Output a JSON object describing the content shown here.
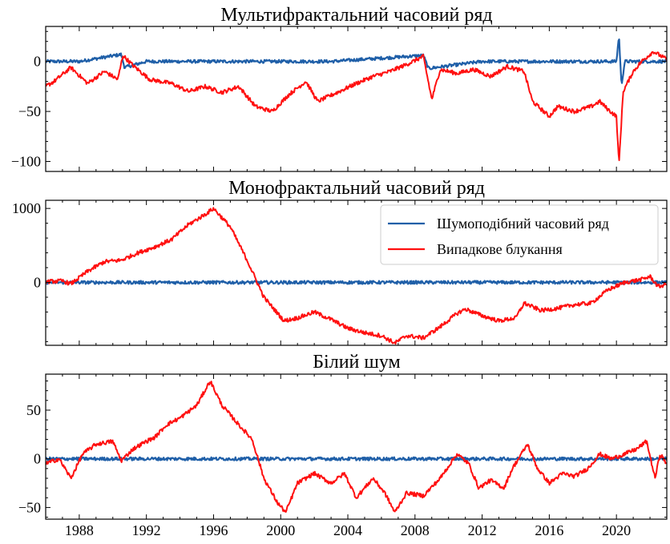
{
  "chart_data": [
    {
      "type": "line",
      "title": "Мультифрактальний часовий ряд",
      "xlabel": "",
      "ylabel": "",
      "xlim": [
        1986.0,
        2023.0
      ],
      "ylim": [
        -110,
        35
      ],
      "yticks": [
        0,
        -50,
        -100
      ],
      "ytick_labels": [
        "0",
        "−50",
        "−100"
      ],
      "x_tick_labels_shown": false,
      "grid": false,
      "series": [
        {
          "color": "#1f5fa8",
          "points": [
            [
              1986.0,
              0
            ],
            [
              1988,
              0
            ],
            [
              1990.5,
              7
            ],
            [
              1990.7,
              -6
            ],
            [
              1992,
              0
            ],
            [
              1996,
              0
            ],
            [
              1999,
              0
            ],
            [
              2003,
              0
            ],
            [
              2008.5,
              6
            ],
            [
              2008.8,
              -7
            ],
            [
              2012,
              0
            ],
            [
              2016,
              0
            ],
            [
              2020.0,
              0
            ],
            [
              2020.15,
              26
            ],
            [
              2020.3,
              -24
            ],
            [
              2020.5,
              0
            ],
            [
              2023.0,
              0
            ]
          ]
        },
        {
          "color": "#ff1010",
          "points": [
            [
              1986.0,
              -25
            ],
            [
              1986.5,
              -20
            ],
            [
              1987.5,
              -6
            ],
            [
              1988.5,
              -22
            ],
            [
              1989.5,
              -10
            ],
            [
              1990.3,
              -18
            ],
            [
              1990.6,
              6
            ],
            [
              1991.2,
              -4
            ],
            [
              1992.2,
              -18
            ],
            [
              1993.5,
              -22
            ],
            [
              1994.5,
              -30
            ],
            [
              1995.5,
              -25
            ],
            [
              1996.5,
              -31
            ],
            [
              1997.5,
              -25
            ],
            [
              1998.5,
              -45
            ],
            [
              1999.5,
              -50
            ],
            [
              2000.5,
              -33
            ],
            [
              2001.5,
              -20
            ],
            [
              2002.2,
              -40
            ],
            [
              2003.5,
              -30
            ],
            [
              2004.5,
              -22
            ],
            [
              2005.5,
              -15
            ],
            [
              2006.5,
              -10
            ],
            [
              2007.5,
              -3
            ],
            [
              2008.5,
              5
            ],
            [
              2009.0,
              -38
            ],
            [
              2009.5,
              -8
            ],
            [
              2010.5,
              -12
            ],
            [
              2011.5,
              -8
            ],
            [
              2012.5,
              -15
            ],
            [
              2013.5,
              -5
            ],
            [
              2014.5,
              -10
            ],
            [
              2015.0,
              -40
            ],
            [
              2016.0,
              -55
            ],
            [
              2016.5,
              -45
            ],
            [
              2017.5,
              -50
            ],
            [
              2018.5,
              -45
            ],
            [
              2019.0,
              -40
            ],
            [
              2019.5,
              -48
            ],
            [
              2020.0,
              -55
            ],
            [
              2020.15,
              -103
            ],
            [
              2020.4,
              -30
            ],
            [
              2021.0,
              -10
            ],
            [
              2021.5,
              0
            ],
            [
              2022.2,
              10
            ],
            [
              2023.0,
              2
            ]
          ]
        }
      ]
    },
    {
      "type": "line",
      "title": "Монофрактальний часовий ряд",
      "xlabel": "",
      "ylabel": "",
      "xlim": [
        1986.0,
        2023.0
      ],
      "ylim": [
        -850,
        1110
      ],
      "yticks": [
        1000,
        0
      ],
      "ytick_labels": [
        "1000",
        "0"
      ],
      "x_tick_labels_shown": false,
      "grid": false,
      "legend": {
        "location": "upper right",
        "entries": [
          "Шумоподібний часовий ряд",
          "Випадкове блукання"
        ]
      },
      "series": [
        {
          "name": "Шумоподібний часовий ряд",
          "color": "#1f5fa8",
          "points": [
            [
              1986.0,
              0
            ],
            [
              2023.0,
              0
            ]
          ]
        },
        {
          "name": "Випадкове блукання",
          "color": "#ff1010",
          "points": [
            [
              1986.0,
              10
            ],
            [
              1987.0,
              20
            ],
            [
              1987.5,
              -20
            ],
            [
              1988.5,
              150
            ],
            [
              1989.5,
              280
            ],
            [
              1990.5,
              300
            ],
            [
              1991.5,
              400
            ],
            [
              1992.5,
              480
            ],
            [
              1993.5,
              580
            ],
            [
              1994.5,
              780
            ],
            [
              1995.5,
              920
            ],
            [
              1996.0,
              1000
            ],
            [
              1997.0,
              750
            ],
            [
              1998.0,
              300
            ],
            [
              1999.0,
              -200
            ],
            [
              2000.2,
              -520
            ],
            [
              2001.0,
              -480
            ],
            [
              2002.0,
              -400
            ],
            [
              2003.0,
              -500
            ],
            [
              2004.0,
              -620
            ],
            [
              2005.0,
              -680
            ],
            [
              2006.0,
              -720
            ],
            [
              2006.8,
              -820
            ],
            [
              2007.5,
              -720
            ],
            [
              2008.5,
              -750
            ],
            [
              2009.5,
              -600
            ],
            [
              2010.5,
              -420
            ],
            [
              2011.0,
              -360
            ],
            [
              2012.0,
              -450
            ],
            [
              2013.0,
              -520
            ],
            [
              2014.0,
              -480
            ],
            [
              2014.5,
              -280
            ],
            [
              2015.5,
              -380
            ],
            [
              2016.5,
              -350
            ],
            [
              2017.5,
              -300
            ],
            [
              2018.5,
              -280
            ],
            [
              2019.5,
              -100
            ],
            [
              2020.5,
              0
            ],
            [
              2021.5,
              40
            ],
            [
              2022.0,
              80
            ],
            [
              2022.5,
              -60
            ],
            [
              2023.0,
              -20
            ]
          ]
        }
      ]
    },
    {
      "type": "line",
      "title": "Білий шум",
      "xlabel": "",
      "ylabel": "",
      "xlim": [
        1986.0,
        2023.0
      ],
      "ylim": [
        -62,
        87
      ],
      "yticks": [
        50,
        0,
        -50
      ],
      "ytick_labels": [
        "50",
        "0",
        "−50"
      ],
      "x_ticks": [
        1988,
        1992,
        1996,
        2000,
        2004,
        2008,
        2012,
        2016,
        2020
      ],
      "x_tick_labels": [
        "1988",
        "1992",
        "1996",
        "2000",
        "2004",
        "2008",
        "2012",
        "2016",
        "2020"
      ],
      "x_tick_labels_shown": true,
      "grid": false,
      "series": [
        {
          "color": "#1f5fa8",
          "points": [
            [
              1986.0,
              0
            ],
            [
              2023.0,
              0
            ]
          ]
        },
        {
          "color": "#ff1010",
          "points": [
            [
              1986.0,
              -5
            ],
            [
              1986.8,
              0
            ],
            [
              1987.5,
              -20
            ],
            [
              1988.2,
              5
            ],
            [
              1989.0,
              15
            ],
            [
              1990.0,
              18
            ],
            [
              1990.5,
              -2
            ],
            [
              1991.2,
              10
            ],
            [
              1992.0,
              18
            ],
            [
              1992.5,
              22
            ],
            [
              1993.2,
              35
            ],
            [
              1994.0,
              42
            ],
            [
              1995.0,
              55
            ],
            [
              1995.8,
              80
            ],
            [
              1996.5,
              55
            ],
            [
              1997.5,
              35
            ],
            [
              1998.3,
              20
            ],
            [
              1999.0,
              -20
            ],
            [
              1999.8,
              -45
            ],
            [
              2000.3,
              -55
            ],
            [
              2001.0,
              -25
            ],
            [
              2002.0,
              -15
            ],
            [
              2003.0,
              -25
            ],
            [
              2003.8,
              -15
            ],
            [
              2004.5,
              -40
            ],
            [
              2005.5,
              -20
            ],
            [
              2006.2,
              -35
            ],
            [
              2006.8,
              -55
            ],
            [
              2007.5,
              -35
            ],
            [
              2008.5,
              -38
            ],
            [
              2009.5,
              -20
            ],
            [
              2010.5,
              5
            ],
            [
              2011.2,
              -5
            ],
            [
              2011.8,
              -30
            ],
            [
              2012.5,
              -22
            ],
            [
              2013.3,
              -30
            ],
            [
              2013.8,
              -10
            ],
            [
              2014.7,
              15
            ],
            [
              2015.3,
              -10
            ],
            [
              2016.0,
              -25
            ],
            [
              2016.8,
              -15
            ],
            [
              2017.5,
              -18
            ],
            [
              2018.3,
              -10
            ],
            [
              2019.0,
              5
            ],
            [
              2019.7,
              0
            ],
            [
              2020.5,
              5
            ],
            [
              2021.2,
              10
            ],
            [
              2021.8,
              18
            ],
            [
              2022.3,
              -20
            ],
            [
              2022.6,
              5
            ],
            [
              2023.0,
              -5
            ]
          ]
        }
      ]
    }
  ]
}
